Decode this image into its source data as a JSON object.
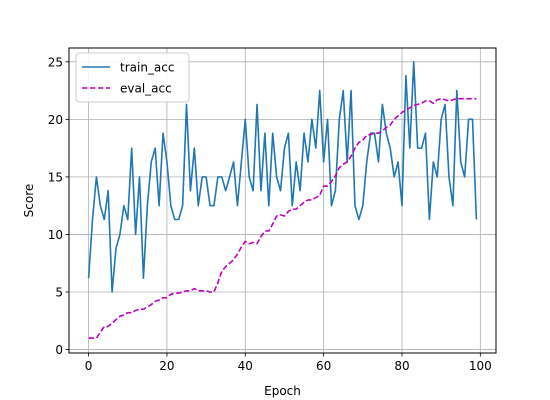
{
  "chart_data": {
    "type": "line",
    "title": "",
    "xlabel": "Epoch",
    "ylabel": "Score",
    "xlim": [
      -5,
      104
    ],
    "ylim": [
      -0.3,
      26.2
    ],
    "xticks": [
      0,
      20,
      40,
      60,
      80,
      100
    ],
    "yticks": [
      0,
      5,
      10,
      15,
      20,
      25
    ],
    "grid": true,
    "legend_position": "top-left",
    "x": [
      0,
      1,
      2,
      3,
      4,
      5,
      6,
      7,
      8,
      9,
      10,
      11,
      12,
      13,
      14,
      15,
      16,
      17,
      18,
      19,
      20,
      21,
      22,
      23,
      24,
      25,
      26,
      27,
      28,
      29,
      30,
      31,
      32,
      33,
      34,
      35,
      36,
      37,
      38,
      39,
      40,
      41,
      42,
      43,
      44,
      45,
      46,
      47,
      48,
      49,
      50,
      51,
      52,
      53,
      54,
      55,
      56,
      57,
      58,
      59,
      60,
      61,
      62,
      63,
      64,
      65,
      66,
      67,
      68,
      69,
      70,
      71,
      72,
      73,
      74,
      75,
      76,
      77,
      78,
      79,
      80,
      81,
      82,
      83,
      84,
      85,
      86,
      87,
      88,
      89,
      90,
      91,
      92,
      93,
      94,
      95,
      96,
      97,
      98,
      99
    ],
    "series": [
      {
        "name": "train_acc",
        "color": "#1f77b4",
        "style": "solid",
        "values": [
          6.2,
          11.3,
          15.0,
          12.5,
          11.3,
          13.8,
          5.0,
          8.8,
          10.0,
          12.5,
          11.3,
          17.5,
          10.0,
          15.0,
          6.2,
          12.5,
          16.3,
          17.5,
          12.5,
          18.8,
          16.3,
          12.5,
          11.3,
          11.3,
          12.5,
          21.3,
          13.8,
          17.5,
          12.5,
          15.0,
          15.0,
          12.5,
          12.5,
          15.0,
          15.0,
          13.8,
          15.0,
          16.3,
          12.5,
          16.3,
          20.0,
          15.0,
          13.8,
          21.3,
          13.8,
          18.8,
          12.5,
          18.8,
          15.0,
          13.8,
          17.5,
          18.8,
          12.5,
          16.3,
          13.8,
          18.8,
          16.3,
          20.0,
          17.5,
          22.5,
          16.3,
          20.0,
          12.5,
          13.8,
          20.0,
          22.5,
          16.3,
          22.5,
          12.5,
          11.3,
          12.5,
          16.3,
          18.8,
          18.8,
          16.3,
          21.3,
          18.8,
          17.5,
          15.0,
          16.3,
          12.5,
          23.8,
          17.5,
          25.0,
          17.5,
          17.5,
          18.8,
          11.3,
          16.3,
          15.0,
          20.0,
          21.3,
          15.0,
          12.5,
          22.5,
          16.3,
          15.0,
          20.0,
          20.0,
          11.3
        ]
      },
      {
        "name": "eval_acc",
        "color": "#bf00bf",
        "style": "dashed",
        "values": [
          1.0,
          1.0,
          1.0,
          1.5,
          2.0,
          2.0,
          2.3,
          2.6,
          2.9,
          3.0,
          3.2,
          3.2,
          3.4,
          3.5,
          3.5,
          3.7,
          3.9,
          4.2,
          4.3,
          4.5,
          4.5,
          4.8,
          4.9,
          4.9,
          5.0,
          5.1,
          5.1,
          5.3,
          5.1,
          5.1,
          5.1,
          5.0,
          5.0,
          5.8,
          6.8,
          7.2,
          7.5,
          7.8,
          8.3,
          8.9,
          9.4,
          9.2,
          9.3,
          9.2,
          9.8,
          10.3,
          10.3,
          10.9,
          11.6,
          11.7,
          11.6,
          12.0,
          12.2,
          12.2,
          12.5,
          12.8,
          13.0,
          13.0,
          13.2,
          13.4,
          14.2,
          14.2,
          14.6,
          15.1,
          15.8,
          16.1,
          16.3,
          16.8,
          17.5,
          18.0,
          18.2,
          18.6,
          18.7,
          18.8,
          18.8,
          19.0,
          19.3,
          19.5,
          20.0,
          20.3,
          20.6,
          20.8,
          21.0,
          21.2,
          21.3,
          21.4,
          21.6,
          21.6,
          21.4,
          21.7,
          21.8,
          21.7,
          21.6,
          21.7,
          21.8,
          21.8,
          21.8,
          21.8,
          21.8,
          21.8
        ]
      }
    ]
  }
}
